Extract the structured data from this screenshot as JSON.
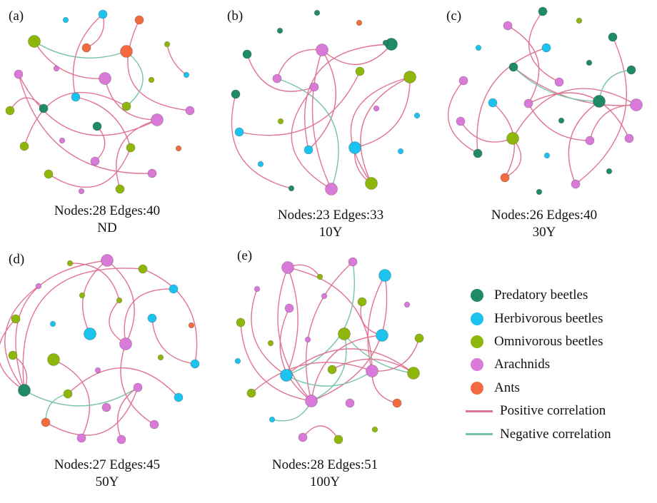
{
  "colors": {
    "predatory": "#1f8a67",
    "herbivorous": "#1cc3ef",
    "omnivorous": "#8fb60a",
    "arachnids": "#d97ad9",
    "ants": "#f26a3d",
    "positive": "#e07592",
    "negative": "#76c4a4"
  },
  "panels": [
    {
      "letter": "(a)",
      "stats": "Nodes:28 Edges:40",
      "period": "ND"
    },
    {
      "letter": "(b)",
      "stats": "Nodes:23 Edges:33",
      "period": "10Y"
    },
    {
      "letter": "(c)",
      "stats": "Nodes:26 Edges:40",
      "period": "30Y"
    },
    {
      "letter": "(d)",
      "stats": "Nodes:27 Edges:45",
      "period": "50Y"
    },
    {
      "letter": "(e)",
      "stats": "Nodes:28 Edges:51",
      "period": "100Y"
    }
  ],
  "legend": {
    "items": [
      {
        "label": "Predatory beetles",
        "kind": "node",
        "color": "#1f8a67"
      },
      {
        "label": "Herbivorous beetles",
        "kind": "node",
        "color": "#1cc3ef"
      },
      {
        "label": "Omnivorous beetles",
        "kind": "node",
        "color": "#8fb60a"
      },
      {
        "label": "Arachnids",
        "kind": "node",
        "color": "#d97ad9"
      },
      {
        "label": "Ants",
        "kind": "node",
        "color": "#f26a3d"
      },
      {
        "label": "Positive correlation",
        "kind": "line",
        "color": "#e07592"
      },
      {
        "label": "Negative correlation",
        "kind": "line",
        "color": "#76c4a4"
      }
    ]
  }
}
